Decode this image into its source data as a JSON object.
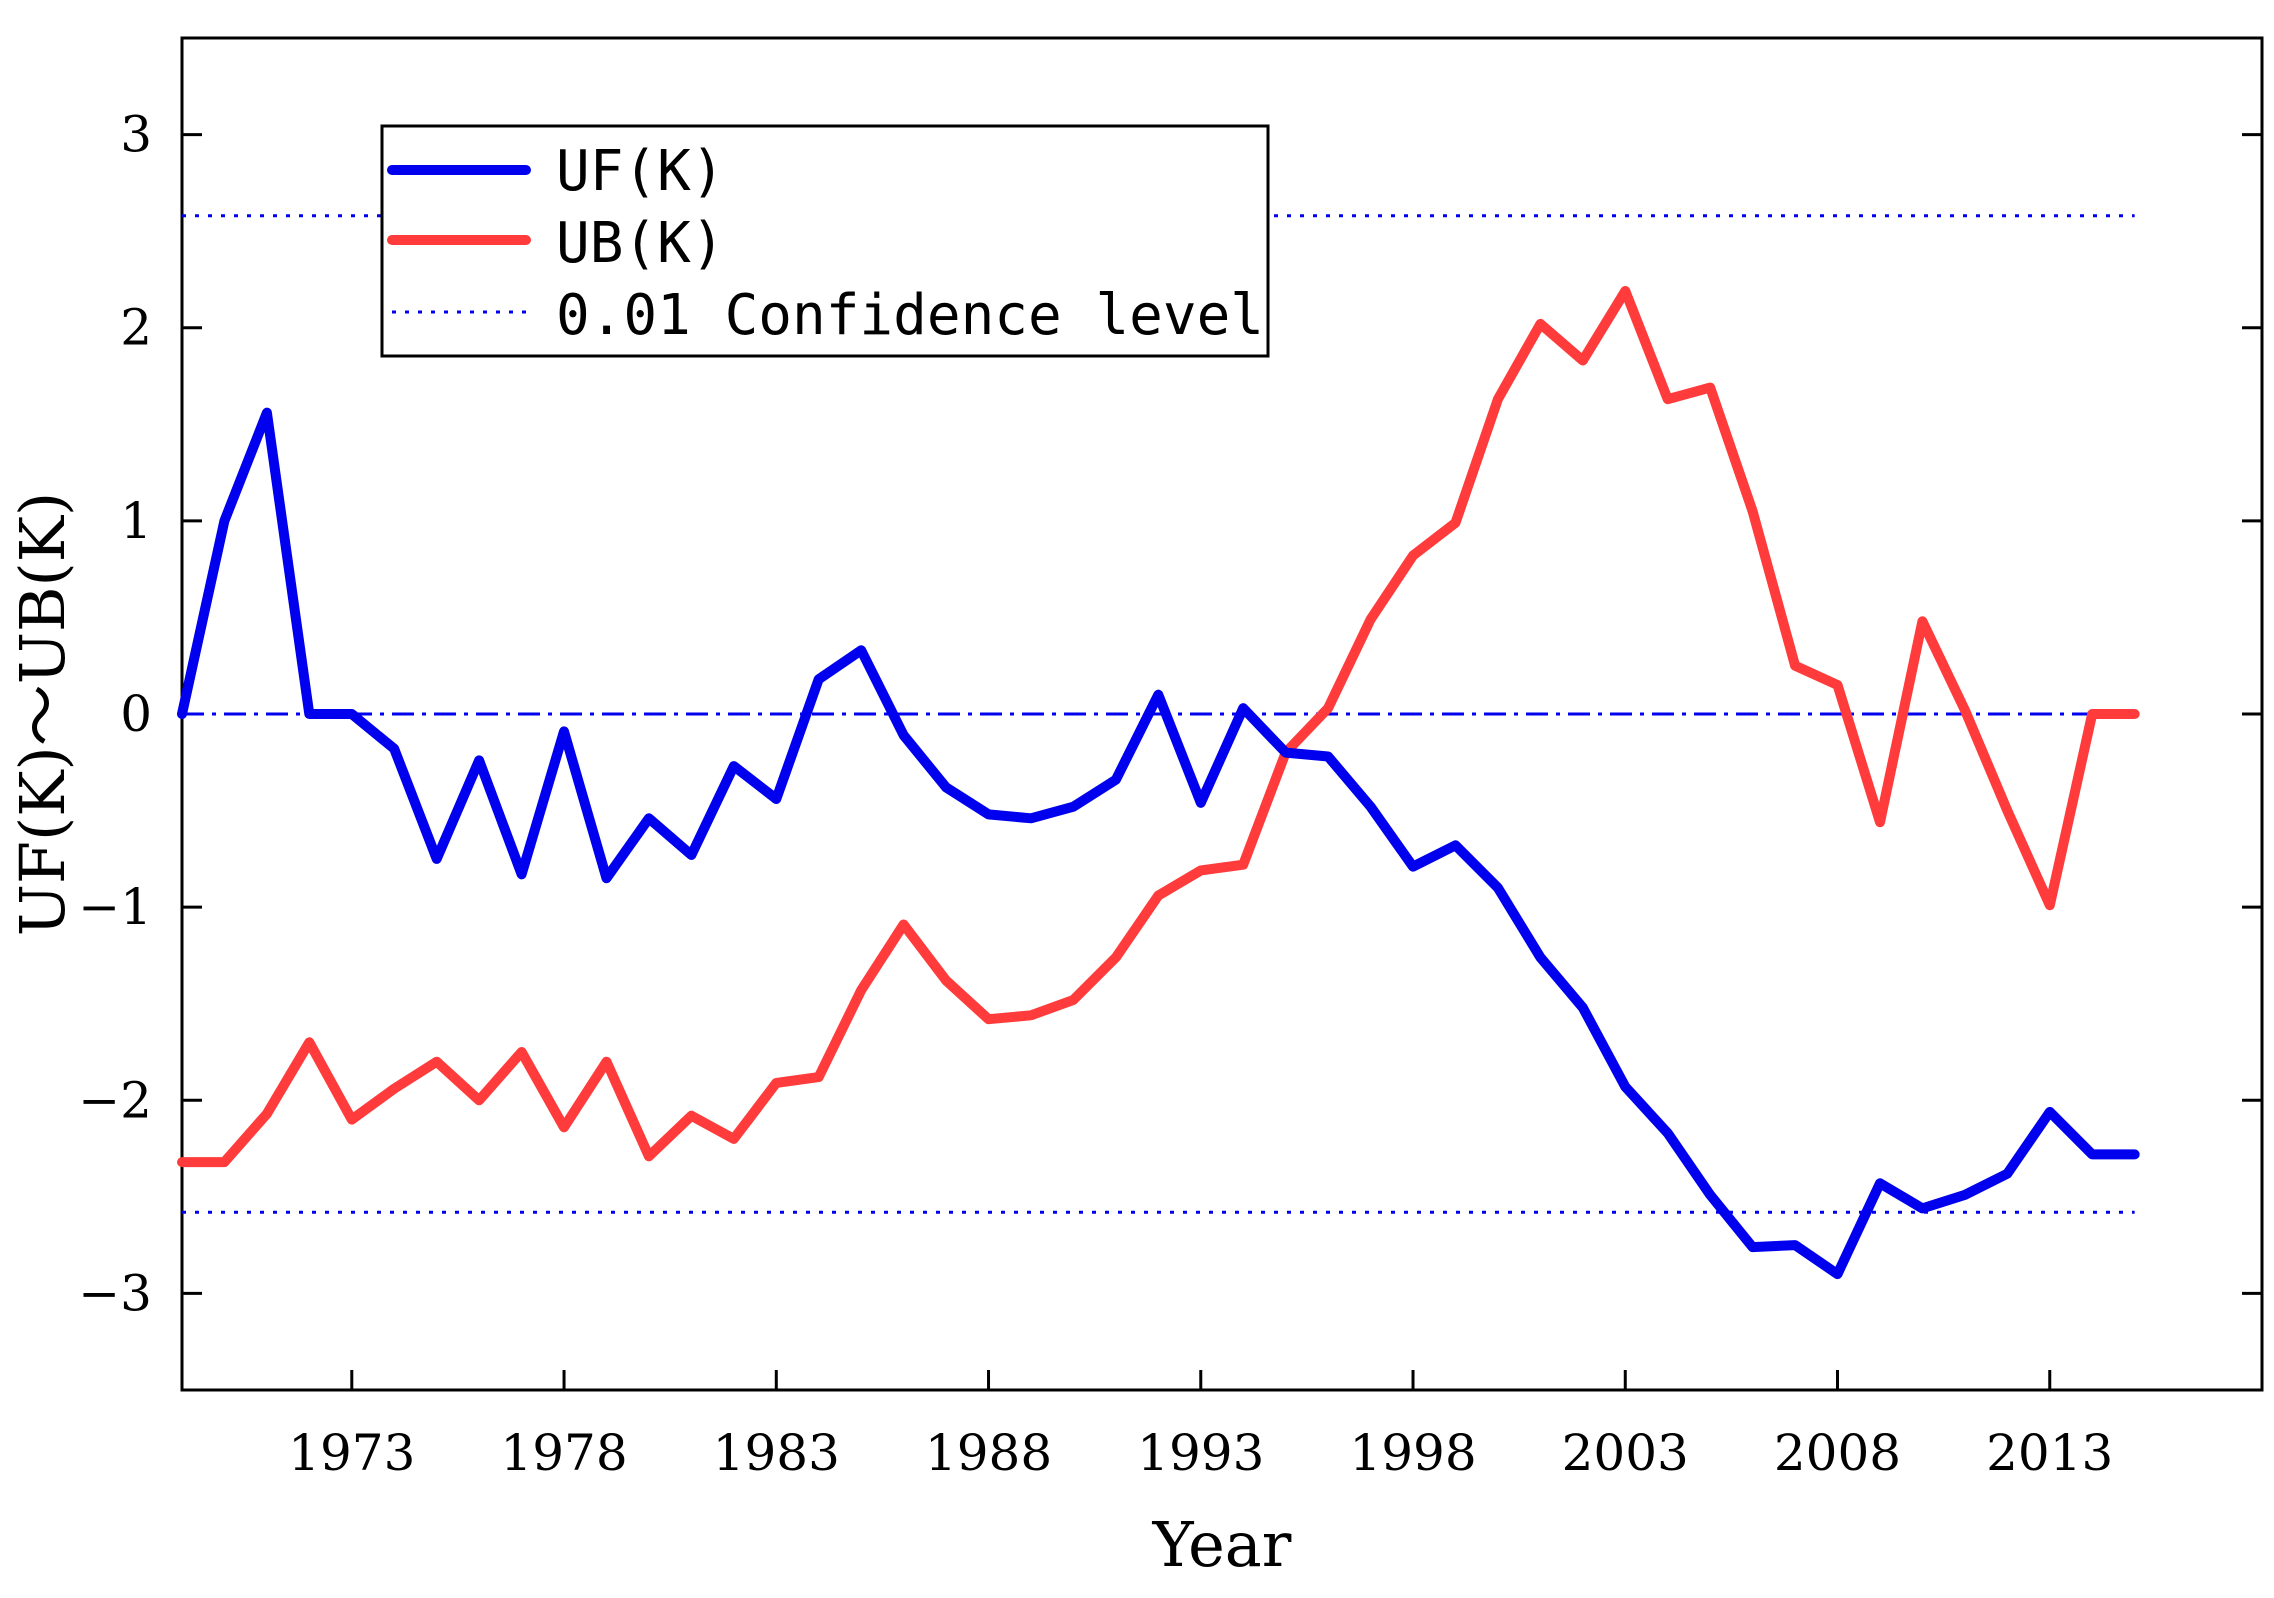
{
  "chart_data": {
    "type": "line",
    "title": "",
    "xlabel": "Year",
    "ylabel": "UF(K)～UB(K)",
    "xlim": [
      1969,
      2018
    ],
    "ylim": [
      -3.5,
      3.5
    ],
    "xticks": [
      1973,
      1978,
      1983,
      1988,
      1993,
      1998,
      2003,
      2008,
      2013
    ],
    "yticks": [
      -3,
      -2,
      -1,
      0,
      1,
      2,
      3
    ],
    "ytick_labels": [
      "−3",
      "−2",
      "−1",
      "0",
      "1",
      "2",
      "3"
    ],
    "grid": false,
    "legend_position": "top-left",
    "x": [
      1969,
      1970,
      1971,
      1972,
      1973,
      1974,
      1975,
      1976,
      1977,
      1978,
      1979,
      1980,
      1981,
      1982,
      1983,
      1984,
      1985,
      1986,
      1987,
      1988,
      1989,
      1990,
      1991,
      1992,
      1993,
      1994,
      1995,
      1996,
      1997,
      1998,
      1999,
      2000,
      2001,
      2002,
      2003,
      2004,
      2005,
      2006,
      2007,
      2008,
      2009,
      2010,
      2011,
      2012,
      2013,
      2014,
      2015
    ],
    "series": [
      {
        "name": "UF(K)",
        "color": "#0000ee",
        "style": "solid",
        "values": [
          0,
          1.0,
          1.56,
          0,
          0,
          -0.18,
          -0.75,
          -0.24,
          -0.83,
          -0.09,
          -0.85,
          -0.54,
          -0.73,
          -0.27,
          -0.44,
          0.18,
          0.33,
          -0.11,
          -0.38,
          -0.52,
          -0.54,
          -0.48,
          -0.34,
          0.1,
          -0.46,
          0.03,
          -0.2,
          -0.22,
          -0.48,
          -0.79,
          -0.68,
          -0.9,
          -1.26,
          -1.52,
          -1.93,
          -2.17,
          -2.49,
          -2.76,
          -2.75,
          -2.9,
          -2.43,
          -2.56,
          -2.49,
          -2.38,
          -2.06,
          -2.28,
          -2.28
        ]
      },
      {
        "name": "UB(K)",
        "color": "#ff3b3b",
        "style": "solid",
        "values": [
          -2.32,
          -2.32,
          -2.07,
          -1.7,
          -2.1,
          -1.94,
          -1.8,
          -2.0,
          -1.75,
          -2.14,
          -1.8,
          -2.29,
          -2.08,
          -2.2,
          -1.91,
          -1.88,
          -1.43,
          -1.09,
          -1.38,
          -1.58,
          -1.56,
          -1.48,
          -1.26,
          -0.94,
          -0.81,
          -0.78,
          -0.2,
          0.03,
          0.49,
          0.82,
          0.99,
          1.63,
          2.02,
          1.83,
          2.19,
          1.63,
          1.69,
          1.05,
          0.25,
          0.15,
          -0.56,
          0.48,
          0.02,
          -0.5,
          -0.99,
          0,
          0
        ]
      },
      {
        "name": "0.01 Confidence level",
        "color": "#0000ee",
        "style": "dotted",
        "values_upper": 2.58,
        "values_lower": -2.58
      }
    ],
    "reference_line": {
      "y": 0,
      "color": "#0000ee",
      "style": "dash-dot"
    }
  }
}
